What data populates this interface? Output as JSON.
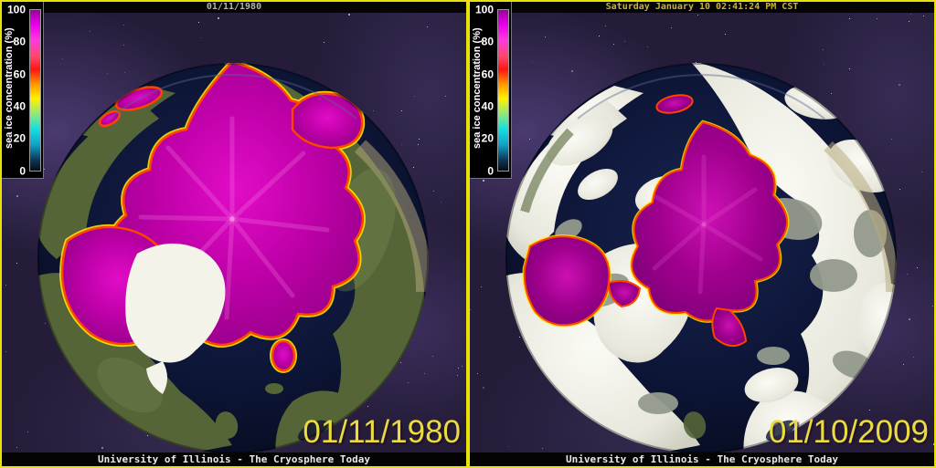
{
  "colorbar": {
    "label": "sea ice concentration (%)",
    "ticks": [
      "100",
      "80",
      "60",
      "40",
      "20",
      "0"
    ]
  },
  "panels": [
    {
      "title": "01/11/1980",
      "big_date": "01/11/1980",
      "footer": "University of Illinois - The Cryosphere Today"
    },
    {
      "title": "Saturday January 10 02:41:24 PM CST",
      "big_date": "01/10/2009",
      "footer": "University of Illinois - The Cryosphere Today"
    }
  ],
  "colors": {
    "border_yellow": "#e6e20a",
    "background_space": "#241c38",
    "ocean_navy": "#0c1430",
    "land_green_1980": "#556538",
    "snow_white_2009": "#f3f3ea",
    "sea_ice_magenta": "#c000ae",
    "ice_edge_orange": "#ff4400",
    "ice_edge_yellow": "#ffe400",
    "date_text_yellow": "#e9dc3e"
  }
}
